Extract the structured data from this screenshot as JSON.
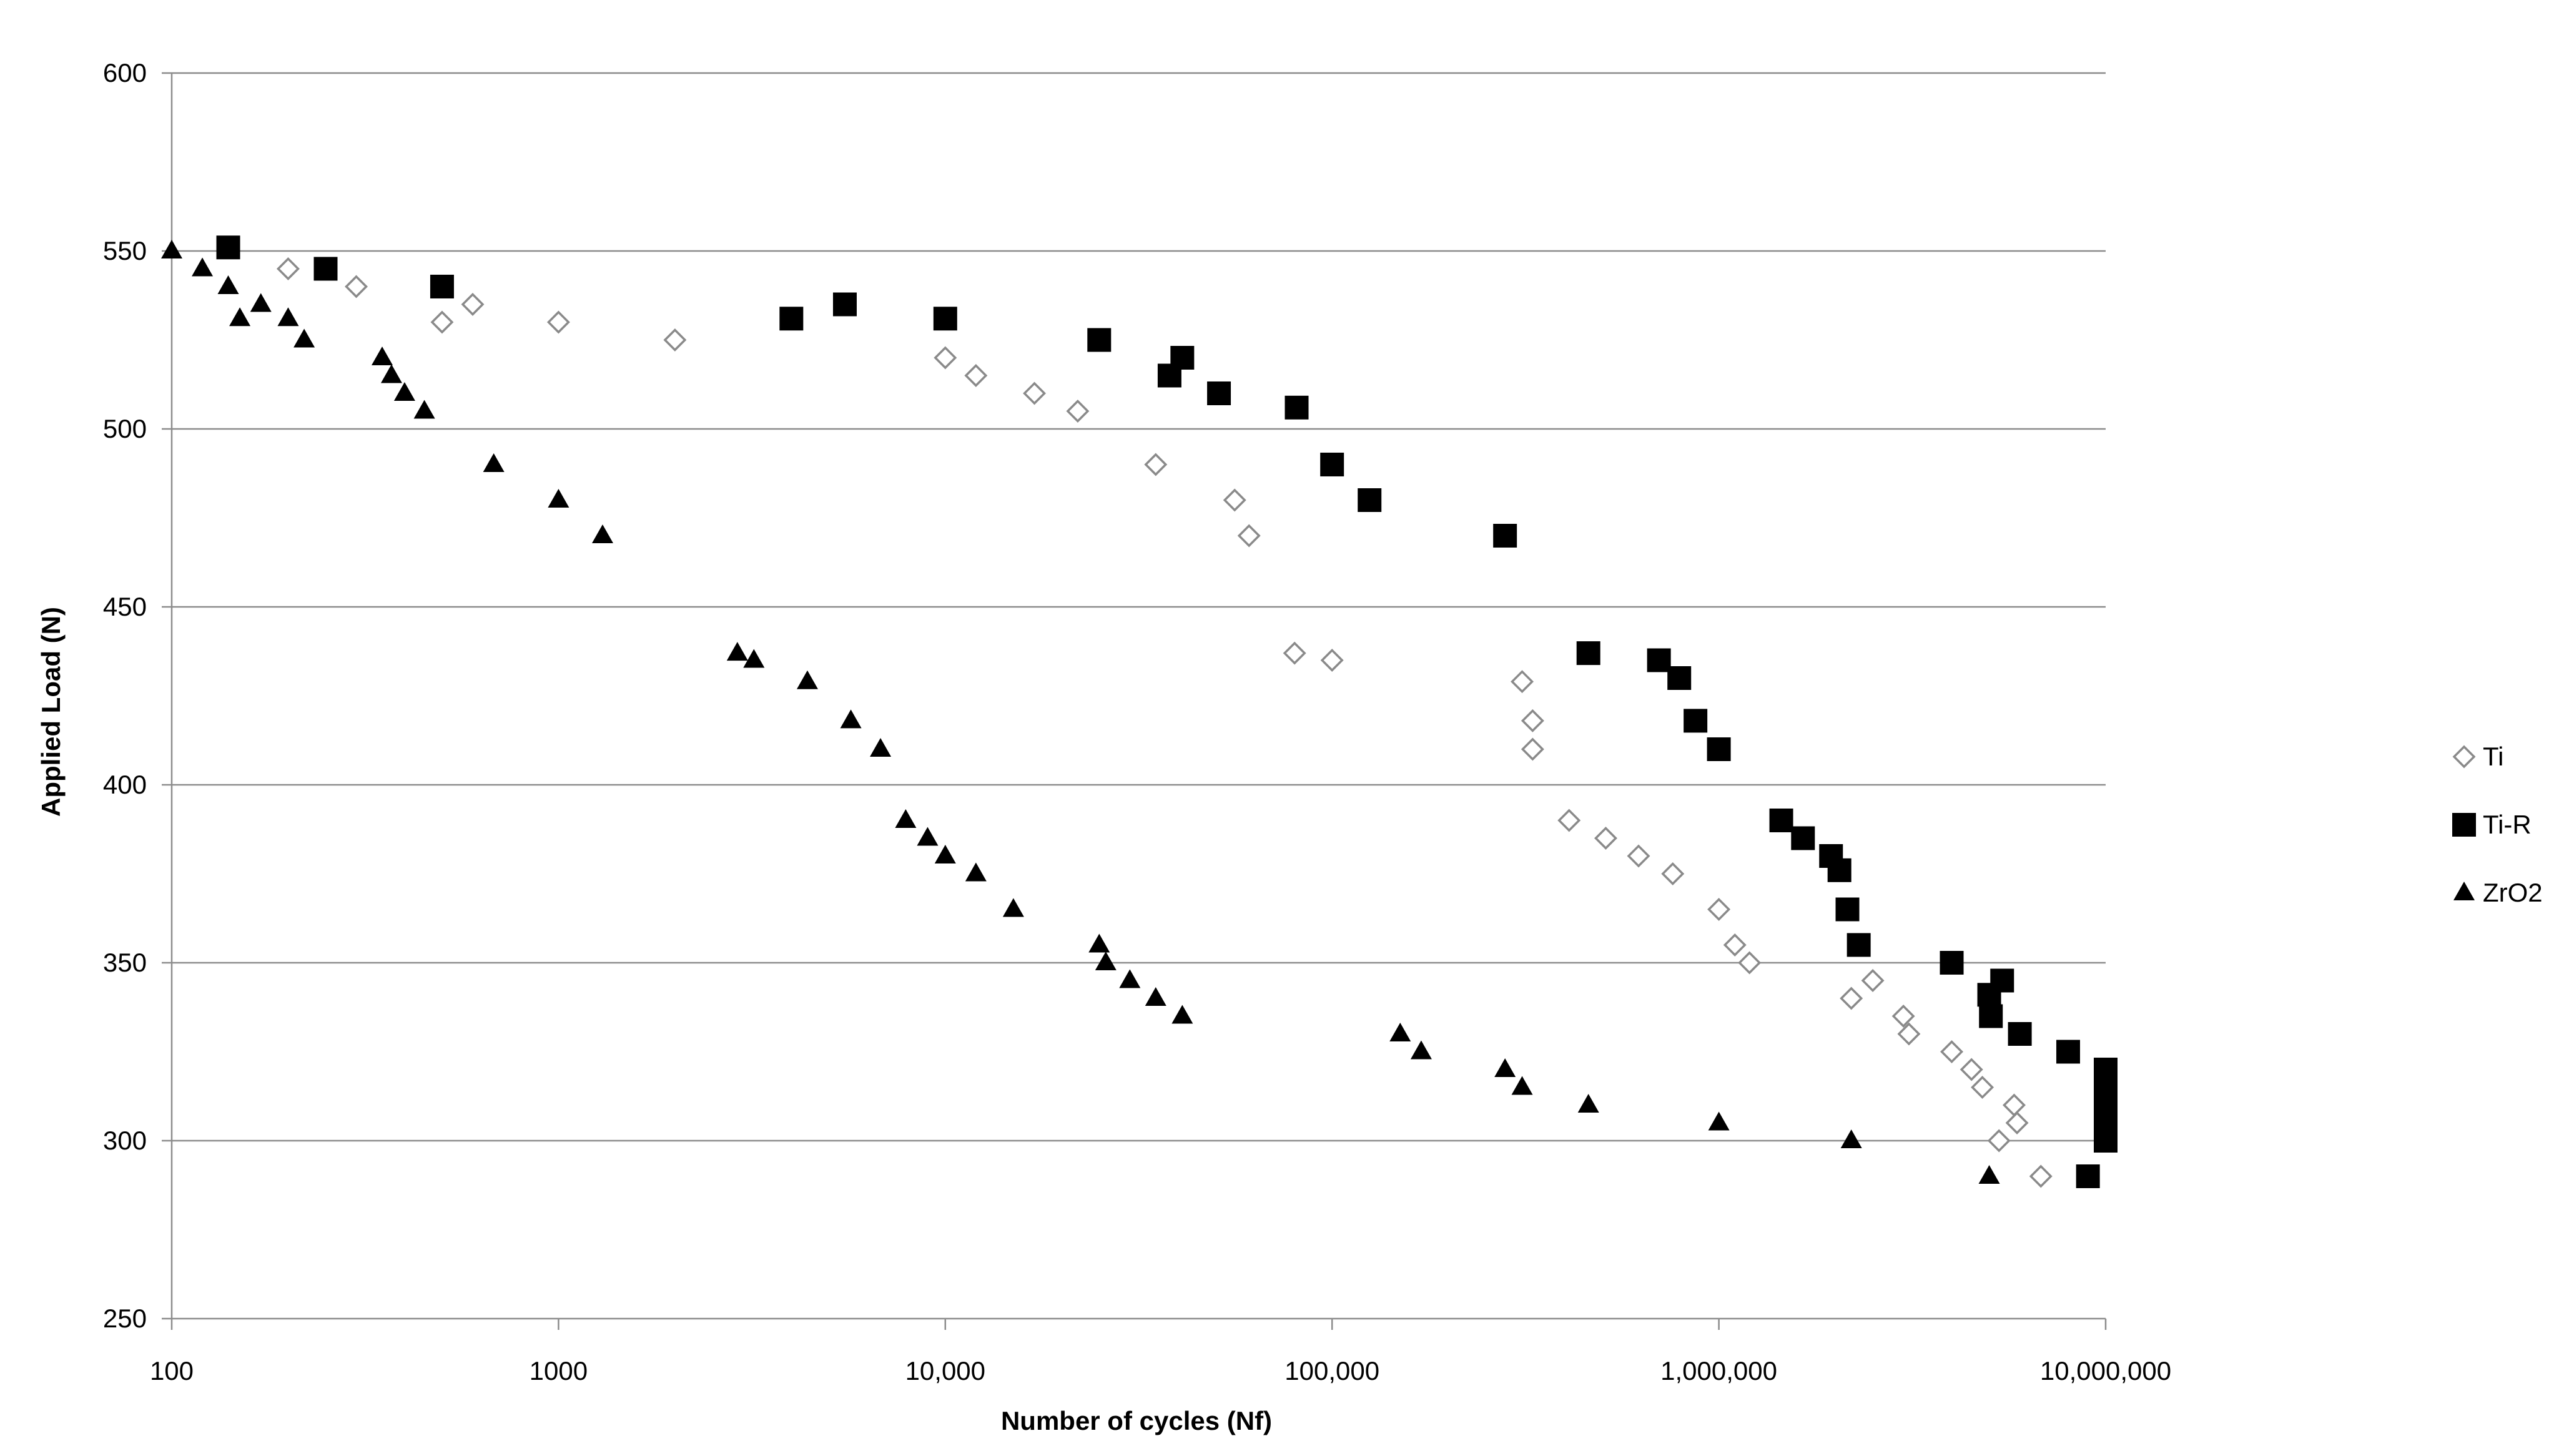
{
  "chart_data": {
    "type": "scatter",
    "title": "",
    "xlabel": "Number of cycles  (Nf)",
    "ylabel": "Applied Load (N)",
    "x_scale": "log",
    "xlim": [
      100,
      10000000
    ],
    "ylim": [
      250,
      600
    ],
    "x_ticks": [
      100,
      1000,
      10000,
      100000,
      1000000,
      10000000
    ],
    "x_tick_labels": [
      "100",
      "1000",
      "10,000",
      "100,000",
      "1,000,000",
      "10,000,000"
    ],
    "y_ticks": [
      250,
      300,
      350,
      400,
      450,
      500,
      550,
      600
    ],
    "y_tick_labels": [
      "250",
      "300",
      "350",
      "400",
      "450",
      "500",
      "550",
      "600"
    ],
    "grid": "horizontal",
    "legend_position": "right",
    "series": [
      {
        "name": "Ti",
        "marker": "open-diamond",
        "color": "#808080",
        "points": [
          [
            200,
            545
          ],
          [
            300,
            540
          ],
          [
            500,
            530
          ],
          [
            600,
            535
          ],
          [
            1000,
            530
          ],
          [
            2000,
            525
          ],
          [
            10000,
            520
          ],
          [
            12000,
            515
          ],
          [
            17000,
            510
          ],
          [
            22000,
            505
          ],
          [
            35000,
            490
          ],
          [
            56000,
            480
          ],
          [
            61000,
            470
          ],
          [
            80000,
            437
          ],
          [
            100000,
            435
          ],
          [
            310000,
            429
          ],
          [
            330000,
            418
          ],
          [
            330000,
            410
          ],
          [
            410000,
            390
          ],
          [
            510000,
            385
          ],
          [
            620000,
            380
          ],
          [
            760000,
            375
          ],
          [
            1000000,
            365
          ],
          [
            1100000,
            355
          ],
          [
            1200000,
            350
          ],
          [
            2200000,
            340
          ],
          [
            2500000,
            345
          ],
          [
            3000000,
            335
          ],
          [
            3100000,
            330
          ],
          [
            4000000,
            325
          ],
          [
            4500000,
            320
          ],
          [
            4800000,
            315
          ],
          [
            5300000,
            300
          ],
          [
            5800000,
            310
          ],
          [
            5900000,
            305
          ],
          [
            6800000,
            290
          ]
        ]
      },
      {
        "name": "Ti-R",
        "marker": "filled-square",
        "color": "#000000",
        "points": [
          [
            140,
            551
          ],
          [
            250,
            545
          ],
          [
            500,
            540
          ],
          [
            4000,
            531
          ],
          [
            5500,
            535
          ],
          [
            10000,
            531
          ],
          [
            25000,
            525
          ],
          [
            38000,
            515
          ],
          [
            41000,
            520
          ],
          [
            51000,
            510
          ],
          [
            81000,
            506
          ],
          [
            100000,
            490
          ],
          [
            125000,
            480
          ],
          [
            280000,
            470
          ],
          [
            460000,
            437
          ],
          [
            700000,
            435
          ],
          [
            790000,
            430
          ],
          [
            870000,
            418
          ],
          [
            1000000,
            410
          ],
          [
            1450000,
            390
          ],
          [
            1650000,
            385
          ],
          [
            1950000,
            380
          ],
          [
            2050000,
            376
          ],
          [
            2150000,
            365
          ],
          [
            2300000,
            355
          ],
          [
            4000000,
            350
          ],
          [
            5000000,
            341
          ],
          [
            5050000,
            335
          ],
          [
            5400000,
            345
          ],
          [
            6000000,
            330
          ],
          [
            8000000,
            325
          ],
          [
            9000000,
            290
          ],
          [
            10000000,
            320
          ],
          [
            10000000,
            315
          ],
          [
            10000000,
            310
          ],
          [
            10000000,
            305
          ],
          [
            10000000,
            300
          ]
        ]
      },
      {
        "name": "ZrO2",
        "marker": "filled-triangle",
        "color": "#000000",
        "points": [
          [
            100,
            550
          ],
          [
            120,
            545
          ],
          [
            140,
            540
          ],
          [
            150,
            531
          ],
          [
            170,
            535
          ],
          [
            200,
            531
          ],
          [
            220,
            525
          ],
          [
            350,
            520
          ],
          [
            370,
            515
          ],
          [
            400,
            510
          ],
          [
            450,
            505
          ],
          [
            680,
            490
          ],
          [
            1000,
            480
          ],
          [
            1300,
            470
          ],
          [
            2900,
            437
          ],
          [
            3200,
            435
          ],
          [
            4400,
            429
          ],
          [
            5700,
            418
          ],
          [
            6800,
            410
          ],
          [
            7900,
            390
          ],
          [
            9000,
            385
          ],
          [
            10000,
            380
          ],
          [
            12000,
            375
          ],
          [
            15000,
            365
          ],
          [
            25000,
            355
          ],
          [
            26000,
            350
          ],
          [
            30000,
            345
          ],
          [
            35000,
            340
          ],
          [
            41000,
            335
          ],
          [
            150000,
            330
          ],
          [
            170000,
            325
          ],
          [
            280000,
            320
          ],
          [
            310000,
            315
          ],
          [
            460000,
            310
          ],
          [
            1000000,
            305
          ],
          [
            2200000,
            300
          ],
          [
            5000000,
            290
          ]
        ]
      }
    ]
  }
}
